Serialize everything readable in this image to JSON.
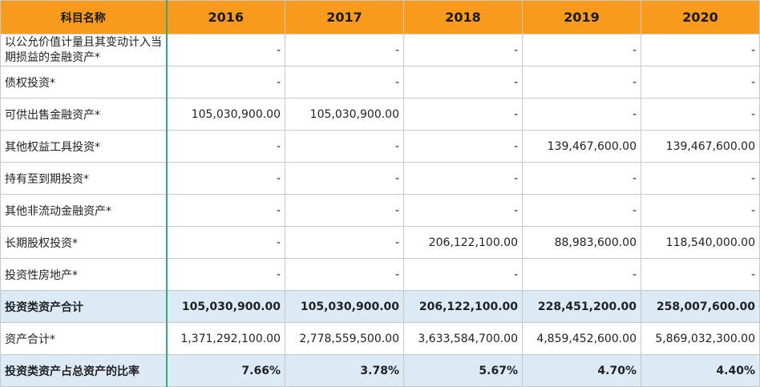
{
  "table": {
    "header": {
      "label": "科目名称",
      "years": [
        "2016",
        "2017",
        "2018",
        "2019",
        "2020"
      ]
    },
    "rows": [
      {
        "label": "以公允价值计量且其变动计入当期损益的金融资产*",
        "values": [
          "-",
          "-",
          "-",
          "-",
          "-"
        ],
        "summary": false
      },
      {
        "label": "债权投资*",
        "values": [
          "-",
          "-",
          "-",
          "-",
          "-"
        ],
        "summary": false
      },
      {
        "label": "可供出售金融资产*",
        "values": [
          "105,030,900.00",
          "105,030,900.00",
          "-",
          "-",
          "-"
        ],
        "summary": false
      },
      {
        "label": "其他权益工具投资*",
        "values": [
          "-",
          "-",
          "-",
          "139,467,600.00",
          "139,467,600.00"
        ],
        "summary": false
      },
      {
        "label": "持有至到期投资*",
        "values": [
          "-",
          "-",
          "-",
          "-",
          "-"
        ],
        "summary": false
      },
      {
        "label": "其他非流动金融资产*",
        "values": [
          "-",
          "-",
          "-",
          "-",
          "-"
        ],
        "summary": false
      },
      {
        "label": "长期股权投资*",
        "values": [
          "-",
          "-",
          "206,122,100.00",
          "88,983,600.00",
          "118,540,000.00"
        ],
        "summary": false
      },
      {
        "label": "投资性房地产*",
        "values": [
          "-",
          "-",
          "-",
          "-",
          "-"
        ],
        "summary": false
      },
      {
        "label": "投资类资产合计",
        "values": [
          "105,030,900.00",
          "105,030,900.00",
          "206,122,100.00",
          "228,451,200.00",
          "258,007,600.00"
        ],
        "summary": true
      },
      {
        "label": "资产合计*",
        "values": [
          "1,371,292,100.00",
          "2,778,559,500.00",
          "3,633,584,700.00",
          "4,859,452,600.00",
          "5,869,032,300.00"
        ],
        "summary": false
      },
      {
        "label": "投资类资产占总资产的比率",
        "values": [
          "7.66%",
          "3.78%",
          "5.67%",
          "4.70%",
          "4.40%"
        ],
        "summary": true
      }
    ]
  },
  "colors": {
    "header_bg": "#f89a1c",
    "summary_bg": "#dbeaf4",
    "label_divider": "#3aa876",
    "grid": "#c8c8c8"
  }
}
